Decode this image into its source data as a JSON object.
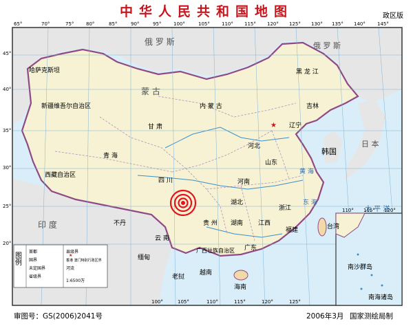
{
  "map": {
    "title": "中华人民共和国地图",
    "badge": "政区版",
    "approval": "审图号：GS(2006)2041号",
    "date": "2006年3月",
    "publisher": "国家测绘局制",
    "legend": {
      "title": "图例",
      "items": [
        "首都",
        "国界",
        "未定国界",
        "省级界",
        "县级界",
        "香港 澳门特别行政区界",
        "河流",
        "1:6500万"
      ]
    },
    "labels": {
      "russia": "俄 罗 斯",
      "mongolia": "蒙 古",
      "xinjiang": "新疆维吾尔自治区",
      "tibet": "西藏自治区",
      "qinghai": "青 海",
      "gansu": "甘 肃",
      "neimenggu": "内 蒙 古",
      "sichuan": "四 川",
      "yunnan": "云 南",
      "guizhou": "贵 州",
      "heilongjiang": "黑 龙 江",
      "jilin": "吉林",
      "liaoning": "辽宁",
      "hebei": "河北",
      "shandong": "山东",
      "henan": "河南",
      "hubei": "湖北",
      "hunan": "湖南",
      "jiangxi": "江西",
      "zhejiang": "浙江",
      "fujian": "福建",
      "guangdong": "广东",
      "guangxi": "广西壮族自治区",
      "taiwan": "台湾",
      "hainan": "海南",
      "korea": "韩国",
      "japan": "日 本",
      "india": "印 度",
      "bhutan": "不丹",
      "myanmar": "缅甸",
      "vietnam": "越南",
      "laos": "老挝",
      "kazakhstan": "哈萨克斯坦",
      "pacific": "太 平 洋",
      "eastsea": "东 海",
      "yellowsea": "黄 海",
      "nansha": "南沙群岛",
      "inset": "南海诸岛"
    },
    "latitudes": [
      "45°",
      "40°",
      "35°",
      "30°",
      "25°",
      "20°"
    ],
    "longitudes_top": [
      "65°",
      "70°",
      "75°",
      "80°",
      "85°",
      "90°",
      "95°",
      "100°",
      "105°",
      "110°",
      "115°",
      "120°",
      "125°",
      "130°",
      "135°",
      "140°",
      "145°"
    ],
    "longitudes_bottom": [
      "100°",
      "105°",
      "110°",
      "115°",
      "120°",
      "125°"
    ],
    "inset_lons": [
      "110°",
      "115°",
      "120°"
    ],
    "marker": "epicenter-marker"
  }
}
